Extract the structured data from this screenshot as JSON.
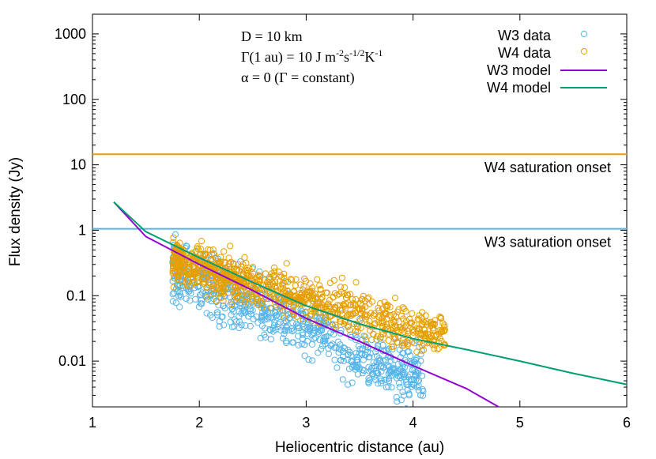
{
  "chart_data": {
    "type": "scatter",
    "title": "",
    "xlabel": "Heliocentric distance (au)",
    "ylabel": "Flux density (Jy)",
    "xlim": [
      1,
      6
    ],
    "ylim": [
      0.002,
      2000
    ],
    "yscale": "log",
    "grid": false,
    "legend_position": "top-right",
    "x_ticks": [
      1,
      2,
      3,
      4,
      5,
      6
    ],
    "x_tick_labels": [
      "1",
      "2",
      "3",
      "4",
      "5",
      "6"
    ],
    "y_ticks": [
      0.01,
      0.1,
      1,
      10,
      100,
      1000
    ],
    "y_tick_labels": [
      "0.01",
      "0.1",
      "1",
      "10",
      "100",
      "1000"
    ],
    "annotation": {
      "line1": "D = 10 km",
      "line2_pre": "Γ(1 au) = 10 J m",
      "line2_sup1": "-2",
      "line2_mid": "s",
      "line2_sup2": "-1/2",
      "line2_mid2": "K",
      "line2_sup3": "-1",
      "line3": "α = 0 (Γ = constant)"
    },
    "reference_lines": [
      {
        "name": "W4 saturation onset",
        "y": 14.5,
        "color": "#E69F00"
      },
      {
        "name": "W3 saturation onset",
        "y": 1.05,
        "color": "#56B4E9"
      }
    ],
    "series": [
      {
        "name": "W3 data",
        "kind": "scatter",
        "color": "#56B4E9",
        "band": {
          "x_start": 1.75,
          "x_end": 4.1,
          "center": [
            [
              1.75,
              0.25
            ],
            [
              2.0,
              0.15
            ],
            [
              2.5,
              0.07
            ],
            [
              3.0,
              0.035
            ],
            [
              3.5,
              0.013
            ],
            [
              4.0,
              0.0065
            ],
            [
              4.1,
              0.006
            ]
          ],
          "spread_dex": 0.25
        }
      },
      {
        "name": "W4 data",
        "kind": "scatter",
        "color": "#E69F00",
        "band": {
          "x_start": 1.75,
          "x_end": 4.3,
          "center": [
            [
              1.75,
              0.33
            ],
            [
              2.0,
              0.27
            ],
            [
              2.5,
              0.15
            ],
            [
              3.0,
              0.09
            ],
            [
              3.5,
              0.055
            ],
            [
              4.0,
              0.03
            ],
            [
              4.3,
              0.025
            ]
          ],
          "spread_dex": 0.18
        }
      },
      {
        "name": "W3 model",
        "kind": "line",
        "color": "#9400D3",
        "x": [
          1.2,
          1.5,
          2.0,
          2.5,
          3.0,
          3.5,
          4.0,
          4.5,
          4.8
        ],
        "y": [
          2.7,
          0.8,
          0.3,
          0.12,
          0.045,
          0.02,
          0.0085,
          0.0038,
          0.002
        ]
      },
      {
        "name": "W4 model",
        "kind": "line",
        "color": "#009E73",
        "x": [
          1.2,
          1.5,
          2.0,
          2.5,
          3.0,
          3.5,
          4.0,
          4.5,
          5.0,
          5.5,
          6.0
        ],
        "y": [
          2.7,
          0.95,
          0.38,
          0.16,
          0.07,
          0.037,
          0.022,
          0.015,
          0.01,
          0.0065,
          0.0044
        ]
      }
    ]
  }
}
